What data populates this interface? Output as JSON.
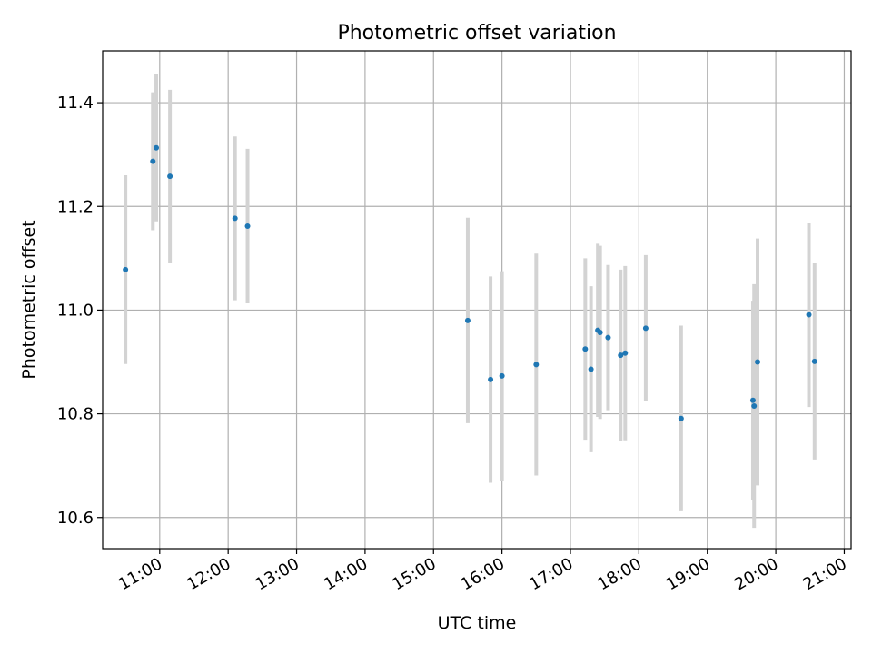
{
  "chart_data": {
    "type": "scatter",
    "title": "Photometric offset variation",
    "xlabel": "UTC time",
    "ylabel": "Photometric offset",
    "xlim": [
      "10:10",
      "21:06"
    ],
    "ylim": [
      10.54,
      11.5
    ],
    "x_ticks": [
      "11:00",
      "12:00",
      "13:00",
      "14:00",
      "15:00",
      "16:00",
      "17:00",
      "18:00",
      "19:00",
      "20:00",
      "21:00"
    ],
    "y_ticks": [
      10.6,
      10.8,
      11.0,
      11.2,
      11.4
    ],
    "y_tick_labels": [
      "10.6",
      "10.8",
      "11.0",
      "11.2",
      "11.4"
    ],
    "grid": true,
    "point_color": "#1f77b4",
    "errorbar_color": "#d3d3d3",
    "points": [
      {
        "x": "10:30",
        "y": 11.078,
        "yerr": 0.182
      },
      {
        "x": "10:54",
        "y": 11.287,
        "yerr": 0.133
      },
      {
        "x": "10:57",
        "y": 11.313,
        "yerr": 0.142
      },
      {
        "x": "11:09",
        "y": 11.258,
        "yerr": 0.167
      },
      {
        "x": "12:06",
        "y": 11.177,
        "yerr": 0.158
      },
      {
        "x": "12:17",
        "y": 11.162,
        "yerr": 0.149
      },
      {
        "x": "15:30",
        "y": 10.98,
        "yerr": 0.198
      },
      {
        "x": "15:50",
        "y": 10.866,
        "yerr": 0.199
      },
      {
        "x": "16:00",
        "y": 10.873,
        "yerr": 0.202
      },
      {
        "x": "16:30",
        "y": 10.895,
        "yerr": 0.214
      },
      {
        "x": "17:13",
        "y": 10.925,
        "yerr": 0.175
      },
      {
        "x": "17:18",
        "y": 10.886,
        "yerr": 0.16
      },
      {
        "x": "17:24",
        "y": 10.961,
        "yerr": 0.167
      },
      {
        "x": "17:26",
        "y": 10.957,
        "yerr": 0.167
      },
      {
        "x": "17:33",
        "y": 10.947,
        "yerr": 0.14
      },
      {
        "x": "17:44",
        "y": 10.913,
        "yerr": 0.165
      },
      {
        "x": "17:48",
        "y": 10.917,
        "yerr": 0.168
      },
      {
        "x": "18:06",
        "y": 10.965,
        "yerr": 0.141
      },
      {
        "x": "18:37",
        "y": 10.791,
        "yerr": 0.179
      },
      {
        "x": "19:40",
        "y": 10.826,
        "yerr": 0.192
      },
      {
        "x": "19:41",
        "y": 10.815,
        "yerr": 0.235
      },
      {
        "x": "19:44",
        "y": 10.9,
        "yerr": 0.238
      },
      {
        "x": "20:29",
        "y": 10.991,
        "yerr": 0.178
      },
      {
        "x": "20:34",
        "y": 10.901,
        "yerr": 0.189
      }
    ]
  }
}
